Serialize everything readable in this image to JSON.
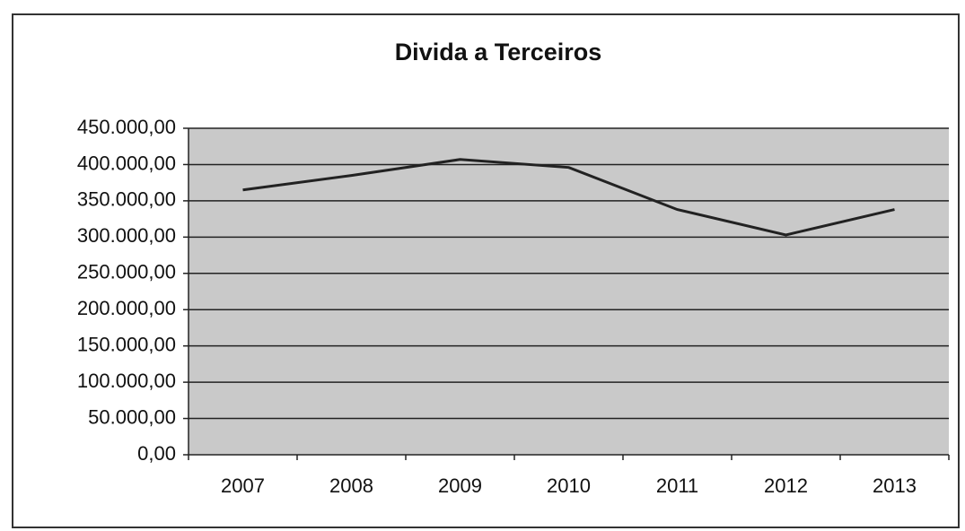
{
  "chart_data": {
    "type": "line",
    "title": "Divida a Terceiros",
    "categories": [
      "2007",
      "2008",
      "2009",
      "2010",
      "2011",
      "2012",
      "2013"
    ],
    "series": [
      {
        "color": "#222222",
        "values": [
          365000,
          385000,
          407000,
          396000,
          338000,
          303000,
          338000
        ]
      }
    ],
    "ylim": [
      0,
      450000
    ],
    "yticks": [
      {
        "value": 0,
        "label": "0,00"
      },
      {
        "value": 50000,
        "label": "50.000,00"
      },
      {
        "value": 100000,
        "label": "100.000,00"
      },
      {
        "value": 150000,
        "label": "150.000,00"
      },
      {
        "value": 200000,
        "label": "200.000,00"
      },
      {
        "value": 250000,
        "label": "250.000,00"
      },
      {
        "value": 300000,
        "label": "300.000,00"
      },
      {
        "value": 350000,
        "label": "350.000,00"
      },
      {
        "value": 400000,
        "label": "400.000,00"
      },
      {
        "value": 450000,
        "label": "450.000,00"
      }
    ],
    "grid": true,
    "plot_color": "#c9c9c9"
  }
}
